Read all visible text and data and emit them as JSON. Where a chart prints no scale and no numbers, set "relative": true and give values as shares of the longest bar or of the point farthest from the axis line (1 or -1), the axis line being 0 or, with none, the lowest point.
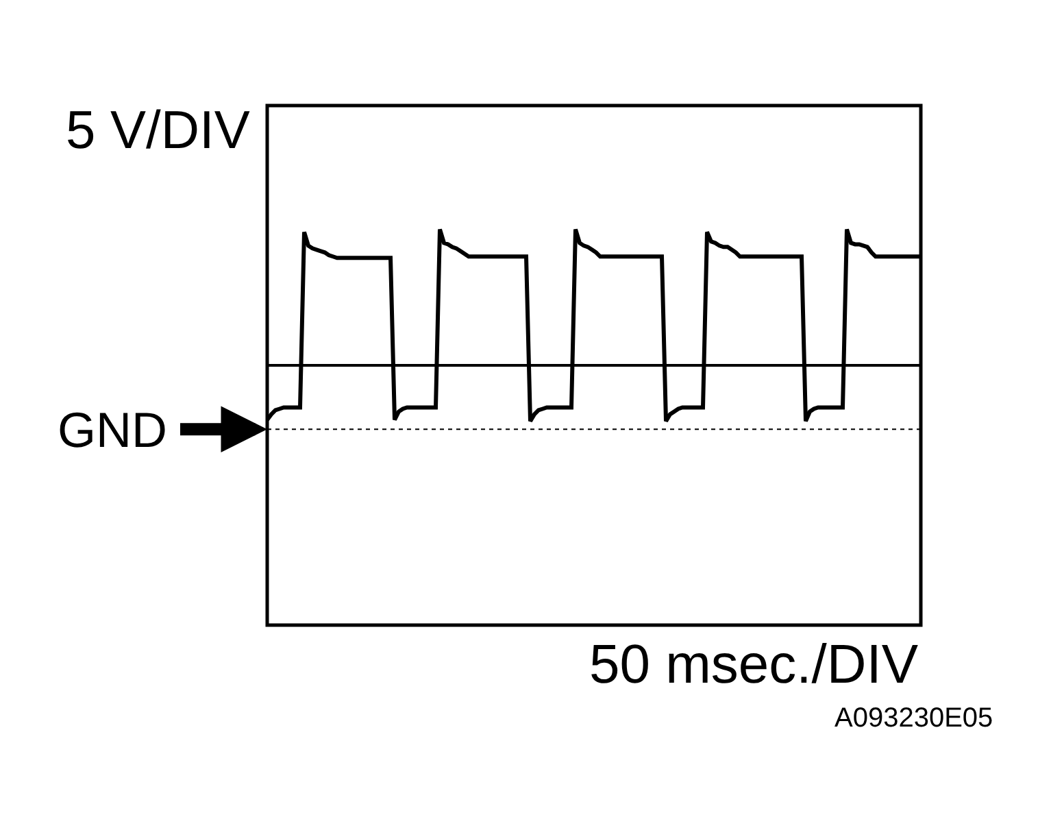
{
  "chart_data": {
    "type": "line",
    "relative": true,
    "ylabel": "5 V/DIV",
    "xlabel": "50 msec./DIV",
    "annotations": [
      "A093230E05"
    ],
    "ref_lines": [
      {
        "axis": "y",
        "value": -0.47,
        "label": "GND",
        "line_style": "dotted",
        "color": "#000000"
      }
    ],
    "color": "#000000",
    "categories": [
      null,
      null,
      null,
      null,
      null,
      null,
      null,
      null,
      null,
      null,
      null,
      null,
      null,
      null,
      null,
      null,
      null,
      null,
      null,
      null,
      null,
      null,
      null,
      null,
      null,
      null,
      null,
      null,
      null,
      null,
      null,
      null,
      null,
      null,
      null,
      null,
      null,
      null,
      null,
      null,
      null,
      null,
      null,
      null,
      null,
      null,
      null,
      null,
      null,
      null,
      null,
      null,
      null,
      null,
      null,
      null,
      null,
      null,
      null,
      null,
      null,
      null,
      null,
      null,
      null,
      null,
      null,
      null,
      null,
      null,
      null,
      null,
      null,
      null,
      null,
      null,
      null,
      null,
      null,
      null,
      null,
      null,
      null,
      null,
      null,
      null,
      null,
      null,
      null,
      null,
      null,
      null,
      null,
      null,
      null,
      null,
      null,
      null,
      null,
      null,
      null,
      null,
      null,
      null,
      null,
      null,
      null,
      null,
      null,
      null,
      null,
      null,
      null,
      null,
      null,
      null,
      null,
      null,
      null,
      null,
      null,
      null,
      null,
      null,
      null,
      null,
      null,
      null,
      null,
      null,
      null,
      null,
      null,
      null,
      null,
      null,
      null,
      null,
      null,
      null,
      null,
      null,
      null,
      null,
      null,
      null,
      null,
      null,
      null,
      null,
      null,
      null,
      null,
      null,
      null,
      null,
      null,
      null,
      null,
      null
    ],
    "values": [
      -0.4,
      -0.36,
      -0.33,
      -0.32,
      -0.31,
      -0.31,
      -0.31,
      -0.31,
      -0.31,
      0.98,
      0.88,
      0.86,
      0.85,
      0.84,
      0.83,
      0.81,
      0.8,
      0.79,
      0.79,
      0.79,
      0.79,
      0.79,
      0.79,
      0.79,
      0.79,
      0.79,
      0.79,
      0.79,
      0.79,
      0.79,
      0.79,
      -0.4,
      -0.34,
      -0.32,
      -0.31,
      -0.31,
      -0.31,
      -0.31,
      -0.31,
      -0.31,
      -0.31,
      -0.31,
      1,
      0.9,
      0.89,
      0.87,
      0.86,
      0.84,
      0.82,
      0.8,
      0.8,
      0.8,
      0.8,
      0.8,
      0.8,
      0.8,
      0.8,
      0.8,
      0.8,
      0.8,
      0.8,
      0.8,
      0.8,
      0.8,
      -0.41,
      -0.36,
      -0.33,
      -0.32,
      -0.31,
      -0.31,
      -0.31,
      -0.31,
      -0.31,
      -0.31,
      -0.31,
      1,
      0.9,
      0.88,
      0.87,
      0.85,
      0.83,
      0.8,
      0.8,
      0.8,
      0.8,
      0.8,
      0.8,
      0.8,
      0.8,
      0.8,
      0.8,
      0.8,
      0.8,
      0.8,
      0.8,
      0.8,
      0.8,
      -0.41,
      -0.36,
      -0.34,
      -0.32,
      -0.31,
      -0.31,
      -0.31,
      -0.31,
      -0.31,
      -0.31,
      0.98,
      0.91,
      0.9,
      0.88,
      0.87,
      0.87,
      0.85,
      0.83,
      0.8,
      0.8,
      0.8,
      0.8,
      0.8,
      0.8,
      0.8,
      0.8,
      0.8,
      0.8,
      0.8,
      0.8,
      0.8,
      0.8,
      0.8,
      0.8,
      -0.41,
      -0.34,
      -0.32,
      -0.31,
      -0.31,
      -0.31,
      -0.31,
      -0.31,
      -0.31,
      -0.31,
      1,
      0.9,
      0.89,
      0.89,
      0.88,
      0.87,
      0.83,
      0.8,
      0.8,
      0.8,
      0.8,
      0.8,
      0.8,
      0.8,
      0.8,
      0.8,
      0.8,
      0.8,
      0.8
    ]
  }
}
